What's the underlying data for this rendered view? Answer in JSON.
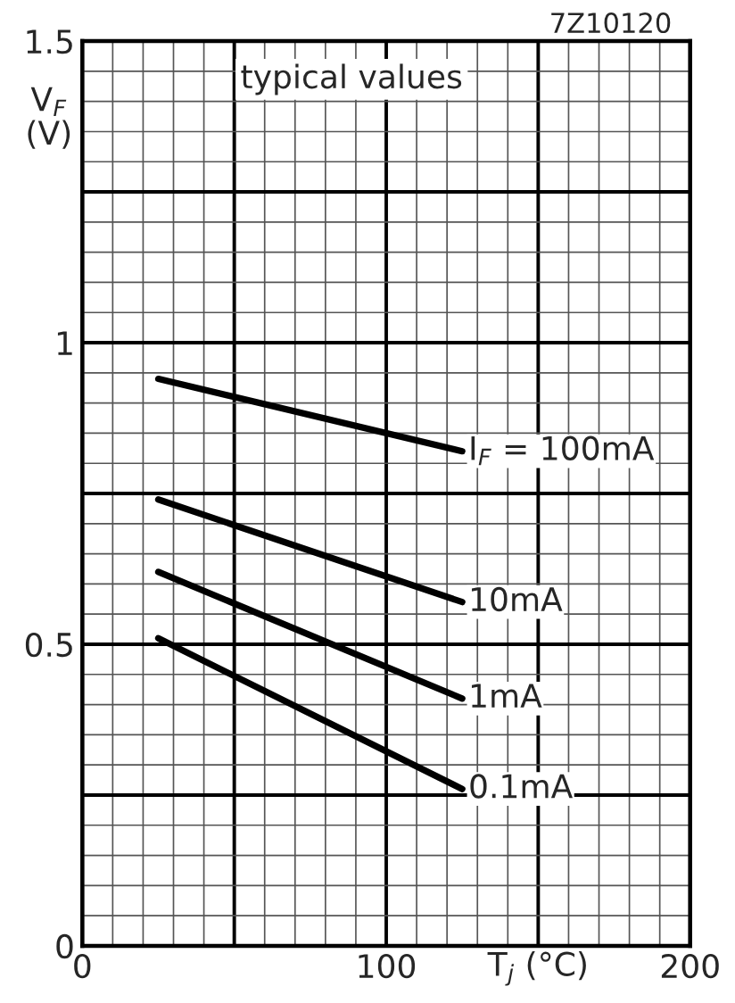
{
  "chart_data": {
    "type": "line",
    "xlabel": "T$_{j}$ (°C)",
    "ylabel": "V$_{F}$\n(V)",
    "annotations": [
      "typical values",
      "7Z10120"
    ],
    "x": [
      25,
      125
    ],
    "series": [
      {
        "name": "I$_{F}$ = 100mA",
        "color": "#000000",
        "values": [
          0.94,
          0.82
        ]
      },
      {
        "name": "10mA",
        "color": "#000000",
        "values": [
          0.74,
          0.57
        ]
      },
      {
        "name": "1mA",
        "color": "#000000",
        "values": [
          0.62,
          0.41
        ]
      },
      {
        "name": "0.1mA",
        "color": "#000000",
        "values": [
          0.51,
          0.26
        ]
      }
    ],
    "xlim": [
      0,
      200
    ],
    "ylim": [
      0,
      1.5
    ],
    "xticks": [
      0,
      {
        "value": 50,
        "label": null
      },
      100,
      {
        "value": 150,
        "label": null
      },
      200
    ],
    "yticks": [
      0,
      {
        "value": 0.25,
        "label": null
      },
      0.5,
      {
        "value": 0.75,
        "label": null
      },
      1,
      {
        "value": 1.25,
        "label": null
      },
      1.5
    ],
    "grid": true,
    "legend": false,
    "marker": "none",
    "line_style": "solid"
  }
}
